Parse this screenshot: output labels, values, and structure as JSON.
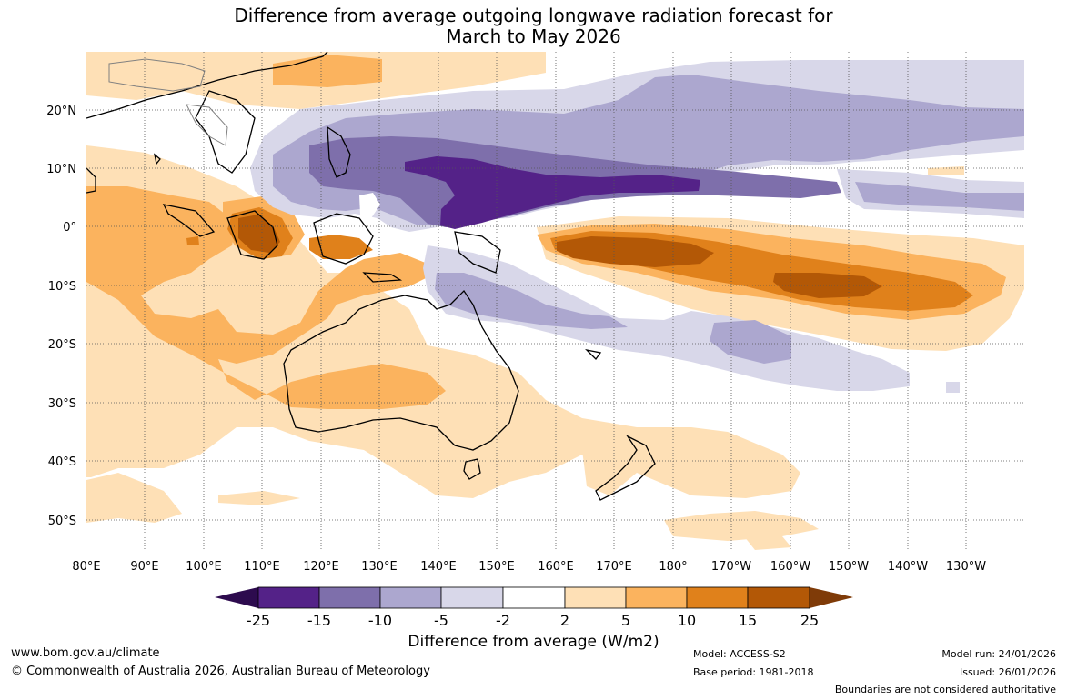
{
  "title_line1": "Difference from average outgoing longwave radiation forecast for",
  "title_line2": "March to May 2026",
  "lat_labels": [
    "20°N",
    "10°N",
    "0°",
    "10°S",
    "20°S",
    "30°S",
    "40°S",
    "50°S"
  ],
  "lon_labels": [
    "80°E",
    "90°E",
    "100°E",
    "110°E",
    "120°E",
    "130°E",
    "140°E",
    "150°E",
    "160°E",
    "170°E",
    "180°",
    "170°W",
    "160°W",
    "150°W",
    "140°W",
    "130°W"
  ],
  "colorbar": {
    "ticks": [
      "-25",
      "-15",
      "-10",
      "-5",
      "-2",
      "2",
      "5",
      "10",
      "15",
      "25"
    ],
    "colors": [
      "#2d0b4e",
      "#542288",
      "#7e6fab",
      "#aca7cf",
      "#d8d7e9",
      "#ffffff",
      "#fee0b6",
      "#fbb35e",
      "#e0811b",
      "#b35806",
      "#7f3b08"
    ],
    "title": "Difference from average (W/m2)"
  },
  "footer": {
    "url": "www.bom.gov.au/climate",
    "copyright": "© Commonwealth of Australia 2026, Australian Bureau of Meteorology",
    "model": "Model: ACCESS-S2",
    "base_period": "Base period: 1981-2018",
    "model_run": "Model run: 24/01/2026",
    "issued": "Issued: 26/01/2026",
    "disclaimer": "Boundaries are not considered authoritative"
  }
}
